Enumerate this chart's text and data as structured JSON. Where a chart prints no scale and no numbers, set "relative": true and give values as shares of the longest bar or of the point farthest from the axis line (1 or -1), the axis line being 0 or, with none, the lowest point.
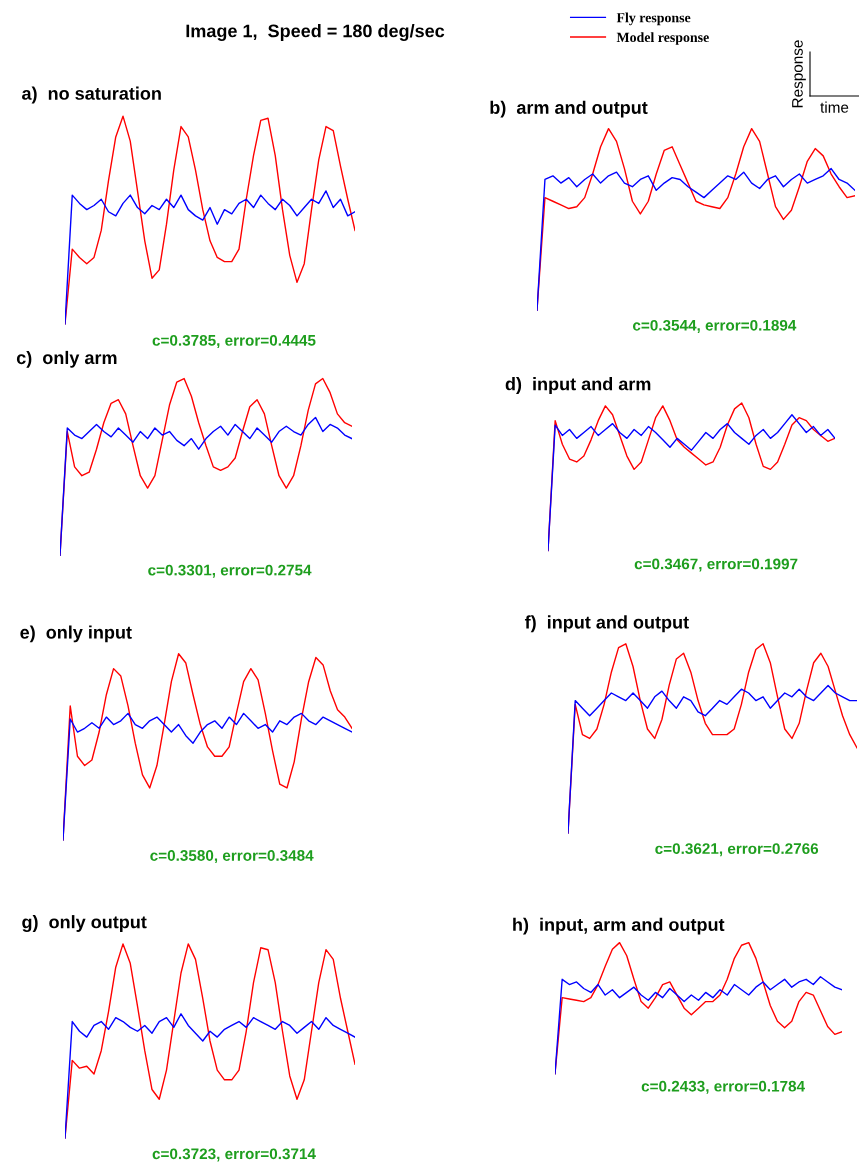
{
  "chart_data": [
    {
      "type": "other",
      "title": "Image 1,  Speed = 180 deg/sec"
    },
    {
      "type": "other",
      "xlabel": "time",
      "ylabel": "Response"
    },
    {
      "type": "line",
      "relative": true,
      "title": "a)  no saturation",
      "annotations": [
        "c=0.3785, error=0.4445"
      ],
      "categories": [
        null,
        null,
        null,
        null,
        null,
        null,
        null,
        null,
        null,
        null,
        null,
        null,
        null,
        null,
        null,
        null,
        null,
        null,
        null,
        null,
        null,
        null,
        null,
        null,
        null,
        null,
        null,
        null,
        null,
        null,
        null,
        null,
        null,
        null,
        null,
        null,
        null,
        null,
        null,
        null,
        null
      ],
      "series": [
        {
          "color": "#0000ff",
          "values": [
            0,
            0.62,
            0.58,
            0.55,
            0.57,
            0.6,
            0.54,
            0.52,
            0.58,
            0.62,
            0.56,
            0.53,
            0.57,
            0.55,
            0.6,
            0.56,
            0.62,
            0.55,
            0.52,
            0.5,
            0.56,
            0.48,
            0.55,
            0.53,
            0.58,
            0.6,
            0.56,
            0.62,
            0.58,
            0.55,
            0.6,
            0.57,
            0.52,
            0.56,
            0.6,
            0.58,
            0.64,
            0.56,
            0.6,
            0.52,
            0.54
          ]
        },
        {
          "color": "#ff0000",
          "values": [
            0,
            0.36,
            0.32,
            0.29,
            0.32,
            0.45,
            0.69,
            0.9,
            1.0,
            0.88,
            0.64,
            0.4,
            0.22,
            0.26,
            0.48,
            0.74,
            0.95,
            0.9,
            0.74,
            0.55,
            0.4,
            0.32,
            0.3,
            0.3,
            0.36,
            0.6,
            0.81,
            0.98,
            0.99,
            0.81,
            0.55,
            0.33,
            0.2,
            0.29,
            0.55,
            0.79,
            0.95,
            0.93,
            0.76,
            0.6,
            0.45
          ]
        }
      ]
    },
    {
      "type": "line",
      "relative": true,
      "title": "b)  arm and output",
      "annotations": [
        "c=0.3544, error=0.1894"
      ],
      "legend": "top",
      "categories": [
        null,
        null,
        null,
        null,
        null,
        null,
        null,
        null,
        null,
        null,
        null,
        null,
        null,
        null,
        null,
        null,
        null,
        null,
        null,
        null,
        null,
        null,
        null,
        null,
        null,
        null,
        null,
        null,
        null,
        null,
        null,
        null,
        null,
        null,
        null,
        null,
        null,
        null,
        null,
        null,
        null
      ],
      "series": [
        {
          "name": "Fly response",
          "color": "#0000ff",
          "values": [
            0,
            0.72,
            0.74,
            0.7,
            0.73,
            0.68,
            0.72,
            0.75,
            0.7,
            0.74,
            0.76,
            0.7,
            0.68,
            0.72,
            0.74,
            0.66,
            0.7,
            0.73,
            0.72,
            0.68,
            0.65,
            0.62,
            0.66,
            0.7,
            0.74,
            0.72,
            0.76,
            0.7,
            0.67,
            0.72,
            0.74,
            0.68,
            0.72,
            0.75,
            0.7,
            0.72,
            0.74,
            0.78,
            0.72,
            0.7,
            0.66
          ]
        },
        {
          "name": "Model response",
          "color": "#ff0000",
          "values": [
            0,
            0.62,
            0.6,
            0.58,
            0.56,
            0.57,
            0.62,
            0.75,
            0.9,
            1.0,
            0.93,
            0.78,
            0.6,
            0.53,
            0.6,
            0.75,
            0.88,
            0.9,
            0.8,
            0.7,
            0.6,
            0.58,
            0.57,
            0.56,
            0.62,
            0.75,
            0.9,
            1.0,
            0.93,
            0.75,
            0.57,
            0.5,
            0.55,
            0.68,
            0.82,
            0.89,
            0.85,
            0.75,
            0.68,
            0.62,
            0.63
          ]
        }
      ]
    },
    {
      "type": "line",
      "relative": true,
      "title": "c)  only arm",
      "annotations": [
        "c=0.3301, error=0.2754"
      ],
      "categories": [
        null,
        null,
        null,
        null,
        null,
        null,
        null,
        null,
        null,
        null,
        null,
        null,
        null,
        null,
        null,
        null,
        null,
        null,
        null,
        null,
        null,
        null,
        null,
        null,
        null,
        null,
        null,
        null,
        null,
        null,
        null,
        null,
        null,
        null,
        null,
        null,
        null,
        null,
        null,
        null,
        null
      ],
      "series": [
        {
          "color": "#0000ff",
          "values": [
            0,
            0.72,
            0.68,
            0.66,
            0.7,
            0.74,
            0.7,
            0.67,
            0.72,
            0.68,
            0.64,
            0.7,
            0.66,
            0.72,
            0.68,
            0.7,
            0.65,
            0.62,
            0.66,
            0.6,
            0.66,
            0.7,
            0.73,
            0.68,
            0.74,
            0.7,
            0.66,
            0.72,
            0.68,
            0.64,
            0.7,
            0.73,
            0.7,
            0.68,
            0.74,
            0.78,
            0.7,
            0.74,
            0.72,
            0.68,
            0.66
          ]
        },
        {
          "color": "#ff0000",
          "values": [
            0,
            0.7,
            0.5,
            0.45,
            0.47,
            0.6,
            0.75,
            0.86,
            0.88,
            0.8,
            0.62,
            0.45,
            0.38,
            0.45,
            0.65,
            0.85,
            0.98,
            1.0,
            0.9,
            0.75,
            0.62,
            0.5,
            0.48,
            0.5,
            0.55,
            0.7,
            0.84,
            0.88,
            0.8,
            0.62,
            0.45,
            0.38,
            0.45,
            0.62,
            0.82,
            0.97,
            1.0,
            0.92,
            0.8,
            0.75,
            0.73
          ]
        }
      ]
    },
    {
      "type": "line",
      "relative": true,
      "title": "d)  input and arm",
      "annotations": [
        "c=0.3467, error=0.1997"
      ],
      "categories": [
        null,
        null,
        null,
        null,
        null,
        null,
        null,
        null,
        null,
        null,
        null,
        null,
        null,
        null,
        null,
        null,
        null,
        null,
        null,
        null,
        null,
        null,
        null,
        null,
        null,
        null,
        null,
        null,
        null,
        null,
        null,
        null,
        null,
        null,
        null,
        null,
        null,
        null,
        null,
        null,
        null
      ],
      "series": [
        {
          "color": "#0000ff",
          "values": [
            0,
            0.85,
            0.78,
            0.82,
            0.76,
            0.8,
            0.84,
            0.78,
            0.82,
            0.86,
            0.8,
            0.76,
            0.82,
            0.78,
            0.84,
            0.8,
            0.75,
            0.7,
            0.76,
            0.72,
            0.68,
            0.74,
            0.8,
            0.76,
            0.82,
            0.86,
            0.8,
            0.76,
            0.72,
            0.78,
            0.82,
            0.76,
            0.8,
            0.86,
            0.92,
            0.86,
            0.8,
            0.84,
            0.78,
            0.82,
            0.76
          ]
        },
        {
          "color": "#ff0000",
          "values": [
            0,
            0.88,
            0.72,
            0.62,
            0.6,
            0.64,
            0.75,
            0.88,
            0.98,
            0.92,
            0.78,
            0.64,
            0.55,
            0.6,
            0.75,
            0.9,
            0.98,
            0.88,
            0.75,
            0.7,
            0.66,
            0.62,
            0.58,
            0.6,
            0.7,
            0.85,
            0.96,
            1.0,
            0.9,
            0.72,
            0.57,
            0.55,
            0.6,
            0.72,
            0.85,
            0.9,
            0.88,
            0.82,
            0.78,
            0.74,
            0.76
          ]
        }
      ]
    },
    {
      "type": "line",
      "relative": true,
      "title": "e)  only input",
      "annotations": [
        "c=0.3580, error=0.3484"
      ],
      "categories": [
        null,
        null,
        null,
        null,
        null,
        null,
        null,
        null,
        null,
        null,
        null,
        null,
        null,
        null,
        null,
        null,
        null,
        null,
        null,
        null,
        null,
        null,
        null,
        null,
        null,
        null,
        null,
        null,
        null,
        null,
        null,
        null,
        null,
        null,
        null,
        null,
        null,
        null,
        null,
        null,
        null
      ],
      "series": [
        {
          "color": "#0000ff",
          "values": [
            0,
            0.65,
            0.58,
            0.6,
            0.63,
            0.6,
            0.66,
            0.62,
            0.64,
            0.68,
            0.62,
            0.6,
            0.64,
            0.66,
            0.62,
            0.58,
            0.62,
            0.56,
            0.52,
            0.58,
            0.62,
            0.64,
            0.6,
            0.66,
            0.62,
            0.68,
            0.64,
            0.6,
            0.62,
            0.58,
            0.64,
            0.62,
            0.66,
            0.68,
            0.64,
            0.62,
            0.66,
            0.64,
            0.62,
            0.6,
            0.58
          ]
        },
        {
          "color": "#ff0000",
          "values": [
            0,
            0.72,
            0.45,
            0.4,
            0.43,
            0.58,
            0.78,
            0.92,
            0.88,
            0.72,
            0.52,
            0.35,
            0.28,
            0.4,
            0.62,
            0.85,
            1.0,
            0.95,
            0.78,
            0.62,
            0.5,
            0.45,
            0.45,
            0.5,
            0.68,
            0.85,
            0.92,
            0.86,
            0.68,
            0.48,
            0.3,
            0.28,
            0.42,
            0.65,
            0.85,
            0.98,
            0.94,
            0.8,
            0.7,
            0.66,
            0.6
          ]
        }
      ]
    },
    {
      "type": "line",
      "relative": true,
      "title": "f)  input and output",
      "annotations": [
        "c=0.3621, error=0.2766"
      ],
      "categories": [
        null,
        null,
        null,
        null,
        null,
        null,
        null,
        null,
        null,
        null,
        null,
        null,
        null,
        null,
        null,
        null,
        null,
        null,
        null,
        null,
        null,
        null,
        null,
        null,
        null,
        null,
        null,
        null,
        null,
        null,
        null,
        null,
        null,
        null,
        null,
        null,
        null,
        null,
        null,
        null,
        null
      ],
      "series": [
        {
          "color": "#0000ff",
          "values": [
            0,
            0.7,
            0.66,
            0.62,
            0.66,
            0.7,
            0.74,
            0.72,
            0.7,
            0.74,
            0.7,
            0.66,
            0.72,
            0.75,
            0.7,
            0.66,
            0.72,
            0.7,
            0.64,
            0.62,
            0.66,
            0.7,
            0.68,
            0.72,
            0.76,
            0.74,
            0.7,
            0.72,
            0.66,
            0.7,
            0.74,
            0.72,
            0.76,
            0.72,
            0.7,
            0.74,
            0.78,
            0.74,
            0.72,
            0.7,
            0.7
          ]
        },
        {
          "color": "#ff0000",
          "values": [
            0,
            0.68,
            0.52,
            0.5,
            0.55,
            0.68,
            0.85,
            0.98,
            1.0,
            0.88,
            0.7,
            0.55,
            0.5,
            0.6,
            0.78,
            0.92,
            0.95,
            0.85,
            0.7,
            0.58,
            0.52,
            0.52,
            0.52,
            0.55,
            0.68,
            0.85,
            0.97,
            1.0,
            0.9,
            0.72,
            0.55,
            0.5,
            0.58,
            0.75,
            0.9,
            0.95,
            0.88,
            0.75,
            0.62,
            0.52,
            0.45
          ]
        }
      ]
    },
    {
      "type": "line",
      "relative": true,
      "title": "g)  only output",
      "annotations": [
        "c=0.3723, error=0.3714"
      ],
      "categories": [
        null,
        null,
        null,
        null,
        null,
        null,
        null,
        null,
        null,
        null,
        null,
        null,
        null,
        null,
        null,
        null,
        null,
        null,
        null,
        null,
        null,
        null,
        null,
        null,
        null,
        null,
        null,
        null,
        null,
        null,
        null,
        null,
        null,
        null,
        null,
        null,
        null,
        null,
        null,
        null,
        null
      ],
      "series": [
        {
          "color": "#0000ff",
          "values": [
            0,
            0.6,
            0.55,
            0.52,
            0.58,
            0.6,
            0.56,
            0.62,
            0.6,
            0.57,
            0.55,
            0.58,
            0.54,
            0.6,
            0.62,
            0.57,
            0.64,
            0.58,
            0.54,
            0.5,
            0.55,
            0.52,
            0.56,
            0.58,
            0.6,
            0.57,
            0.62,
            0.6,
            0.58,
            0.56,
            0.6,
            0.58,
            0.54,
            0.57,
            0.6,
            0.56,
            0.62,
            0.58,
            0.56,
            0.54,
            0.52
          ]
        },
        {
          "color": "#ff0000",
          "values": [
            0,
            0.4,
            0.36,
            0.37,
            0.33,
            0.45,
            0.65,
            0.88,
            1.0,
            0.9,
            0.68,
            0.45,
            0.25,
            0.2,
            0.35,
            0.6,
            0.85,
            1.0,
            0.92,
            0.72,
            0.5,
            0.35,
            0.3,
            0.3,
            0.35,
            0.55,
            0.8,
            0.98,
            0.97,
            0.8,
            0.55,
            0.32,
            0.2,
            0.3,
            0.55,
            0.8,
            0.97,
            0.92,
            0.72,
            0.55,
            0.38
          ]
        }
      ]
    },
    {
      "type": "line",
      "relative": true,
      "title": "h)  input, arm and output",
      "annotations": [
        "c=0.2433, error=0.1784"
      ],
      "categories": [
        null,
        null,
        null,
        null,
        null,
        null,
        null,
        null,
        null,
        null,
        null,
        null,
        null,
        null,
        null,
        null,
        null,
        null,
        null,
        null,
        null,
        null,
        null,
        null,
        null,
        null,
        null,
        null,
        null,
        null,
        null,
        null,
        null,
        null,
        null,
        null,
        null,
        null,
        null,
        null,
        null
      ],
      "series": [
        {
          "color": "#0000ff",
          "values": [
            0,
            0.72,
            0.68,
            0.7,
            0.65,
            0.62,
            0.68,
            0.6,
            0.64,
            0.58,
            0.62,
            0.66,
            0.6,
            0.56,
            0.62,
            0.58,
            0.65,
            0.6,
            0.55,
            0.6,
            0.56,
            0.62,
            0.58,
            0.64,
            0.6,
            0.68,
            0.64,
            0.6,
            0.66,
            0.7,
            0.64,
            0.68,
            0.72,
            0.66,
            0.7,
            0.72,
            0.68,
            0.74,
            0.7,
            0.66,
            0.64
          ]
        },
        {
          "color": "#ff0000",
          "values": [
            0,
            0.58,
            0.57,
            0.56,
            0.55,
            0.58,
            0.68,
            0.82,
            0.95,
            1.0,
            0.9,
            0.72,
            0.55,
            0.5,
            0.58,
            0.68,
            0.7,
            0.6,
            0.5,
            0.45,
            0.5,
            0.55,
            0.55,
            0.6,
            0.72,
            0.88,
            0.98,
            1.0,
            0.88,
            0.7,
            0.52,
            0.4,
            0.35,
            0.4,
            0.55,
            0.62,
            0.6,
            0.48,
            0.36,
            0.3,
            0.32
          ]
        }
      ]
    }
  ]
}
